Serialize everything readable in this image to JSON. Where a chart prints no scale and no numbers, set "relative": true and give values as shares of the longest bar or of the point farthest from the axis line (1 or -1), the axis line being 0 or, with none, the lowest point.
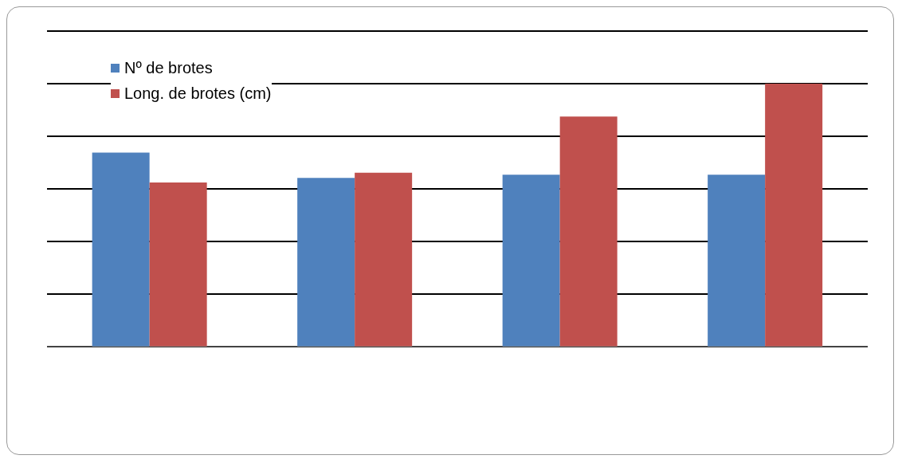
{
  "chart_data": {
    "type": "bar",
    "relative": true,
    "categories": [
      null,
      null,
      null,
      null
    ],
    "series": [
      {
        "name": "Nº de brotes",
        "color": "#4f81bd",
        "values": [
          0.738,
          0.642,
          0.654,
          0.654
        ]
      },
      {
        "name": "Long. de brotes (cm)",
        "color": "#c0504d",
        "values": [
          0.624,
          0.661,
          0.875,
          1
        ]
      }
    ],
    "grid": "y",
    "legend": "top left"
  }
}
